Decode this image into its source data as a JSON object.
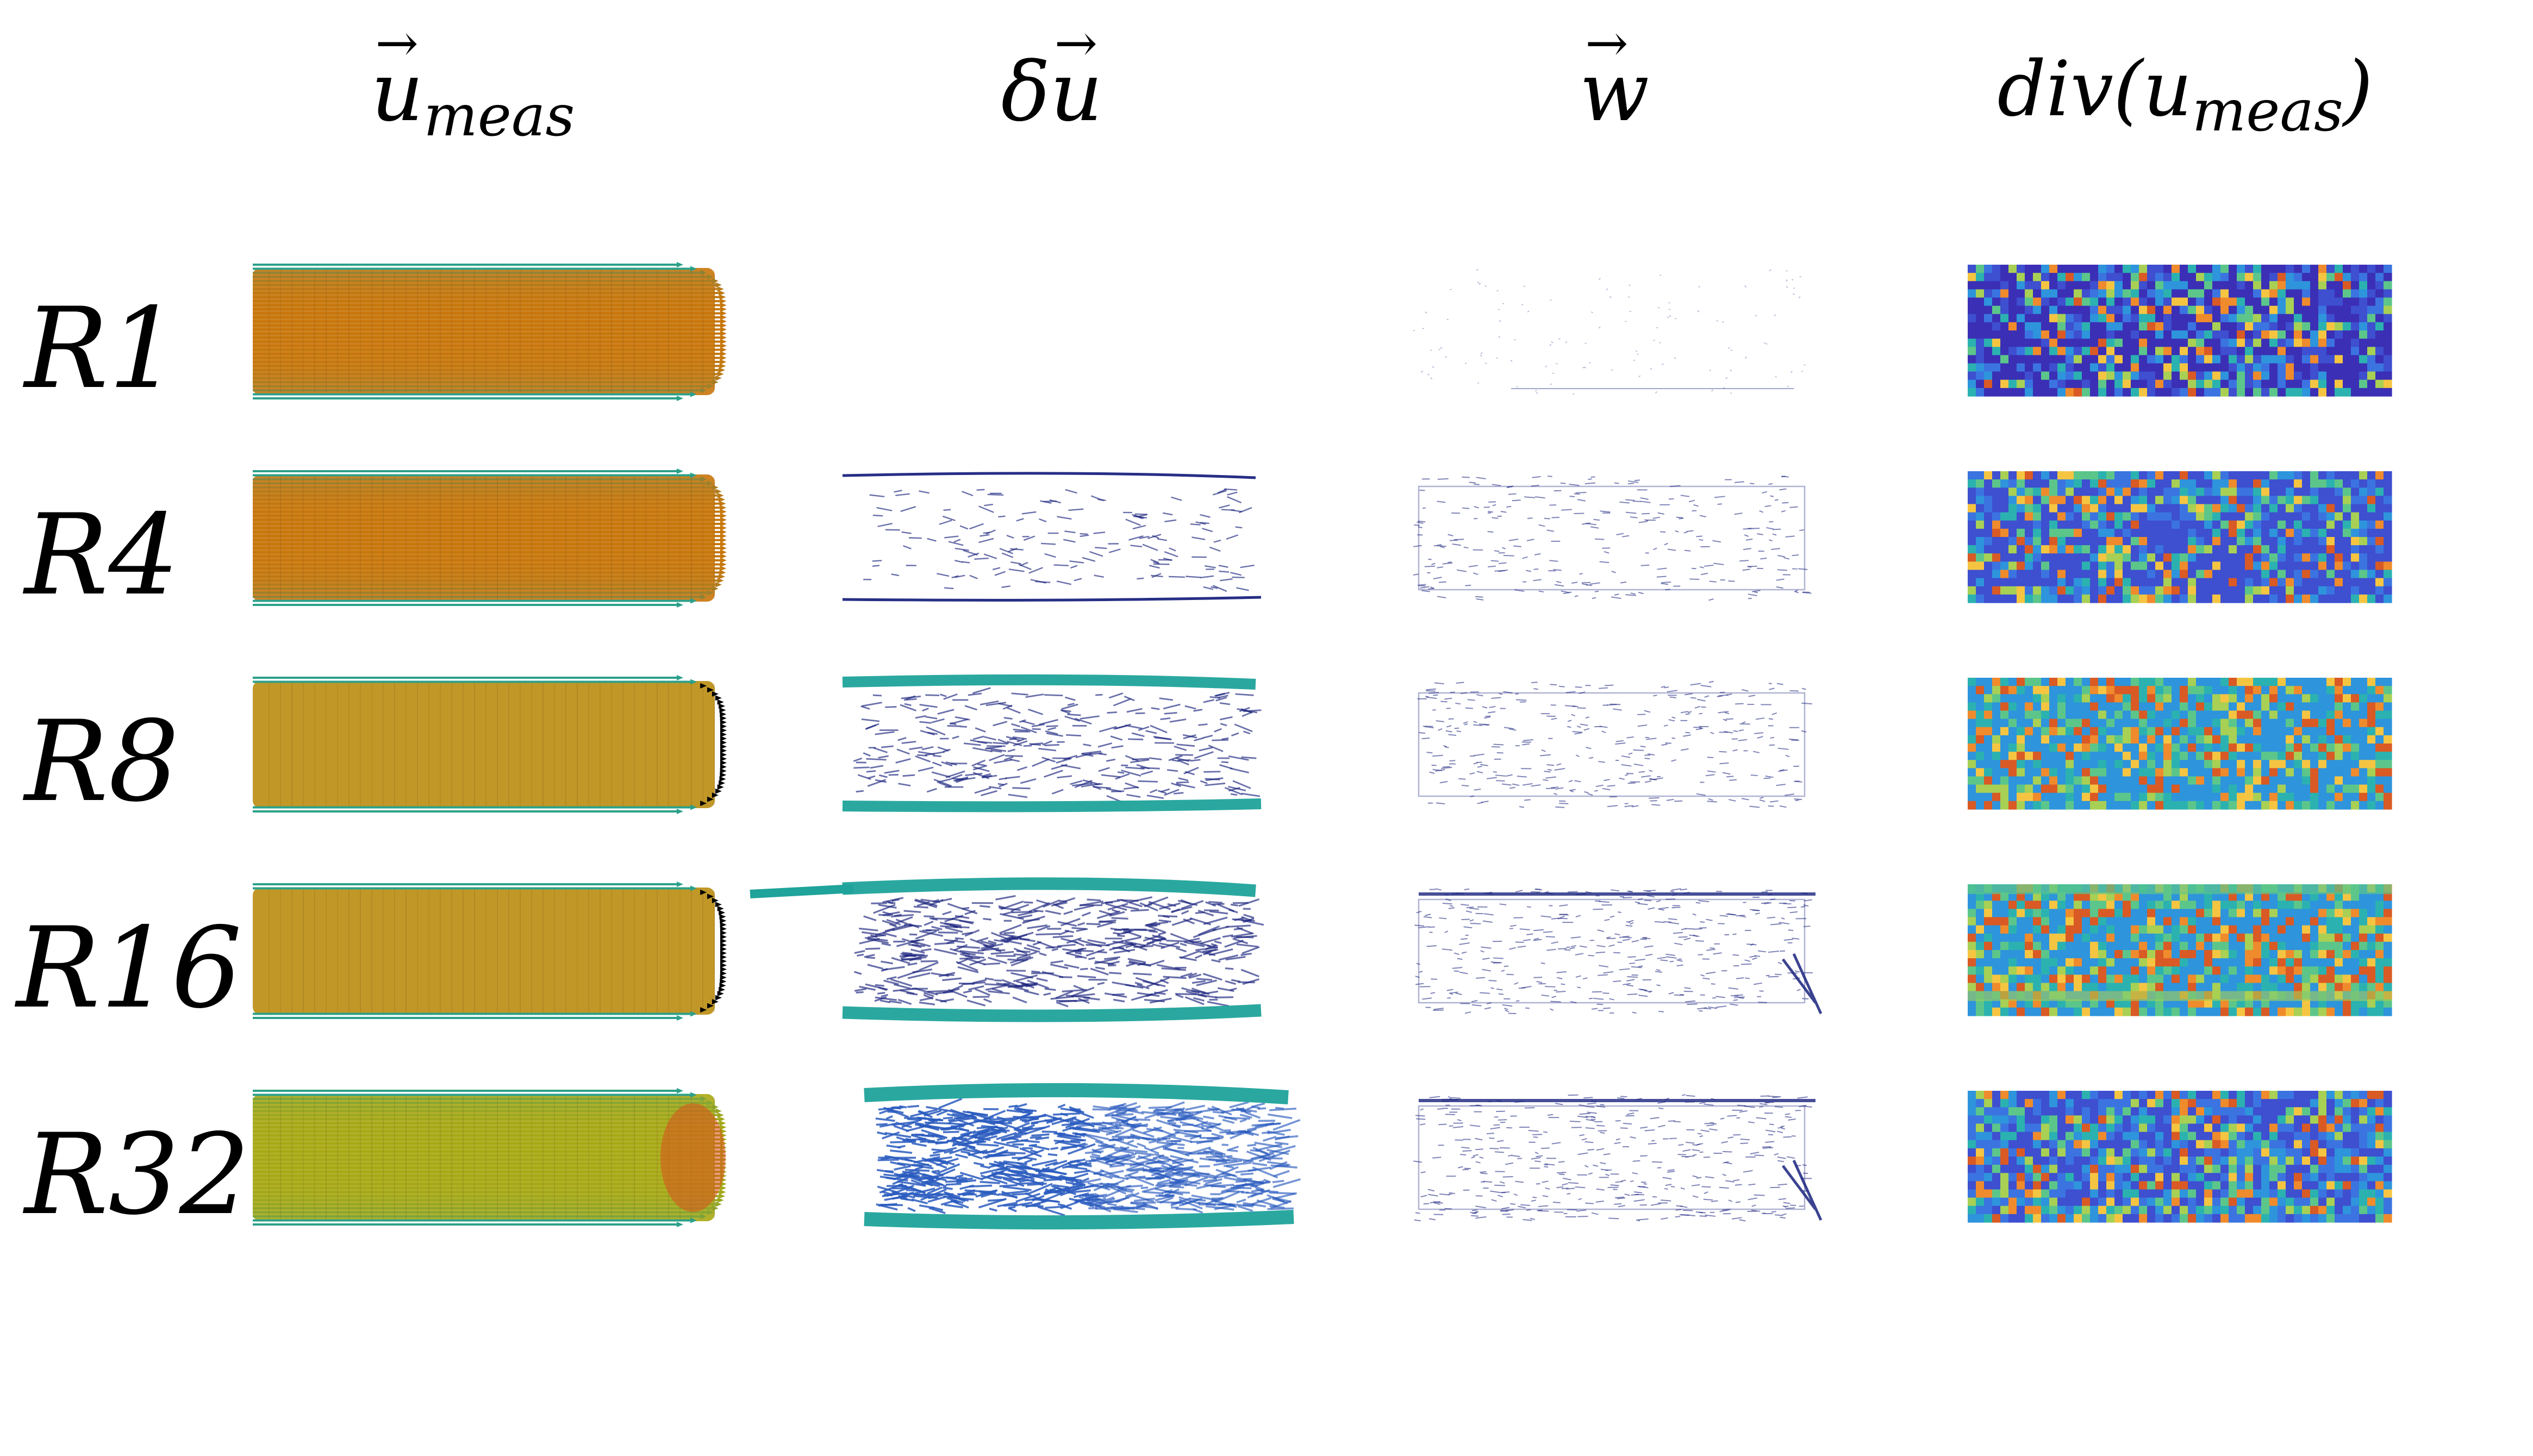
{
  "columns": [
    {
      "id": "u_meas",
      "base": "u",
      "vector": true,
      "sub": "meas",
      "prefix": ""
    },
    {
      "id": "delta_u",
      "base": "u",
      "vector": true,
      "sub": "",
      "prefix": "δ"
    },
    {
      "id": "w",
      "base": "w",
      "vector": true,
      "sub": "",
      "prefix": ""
    },
    {
      "id": "div_u_meas",
      "text": "div(u",
      "sub": "meas",
      "suffix": ")"
    }
  ],
  "rows": [
    "R1",
    "R4",
    "R8",
    "R16",
    "R32"
  ],
  "colors": {
    "velocity_core": "#c8760a",
    "velocity_mid": "#a8a814",
    "velocity_edge": "#2ca08a",
    "sheet": "#1fa39a",
    "arrow_dark": "#1a237e",
    "divergence_low": "#3b2fb5",
    "divergence_high": "#f5c542"
  }
}
